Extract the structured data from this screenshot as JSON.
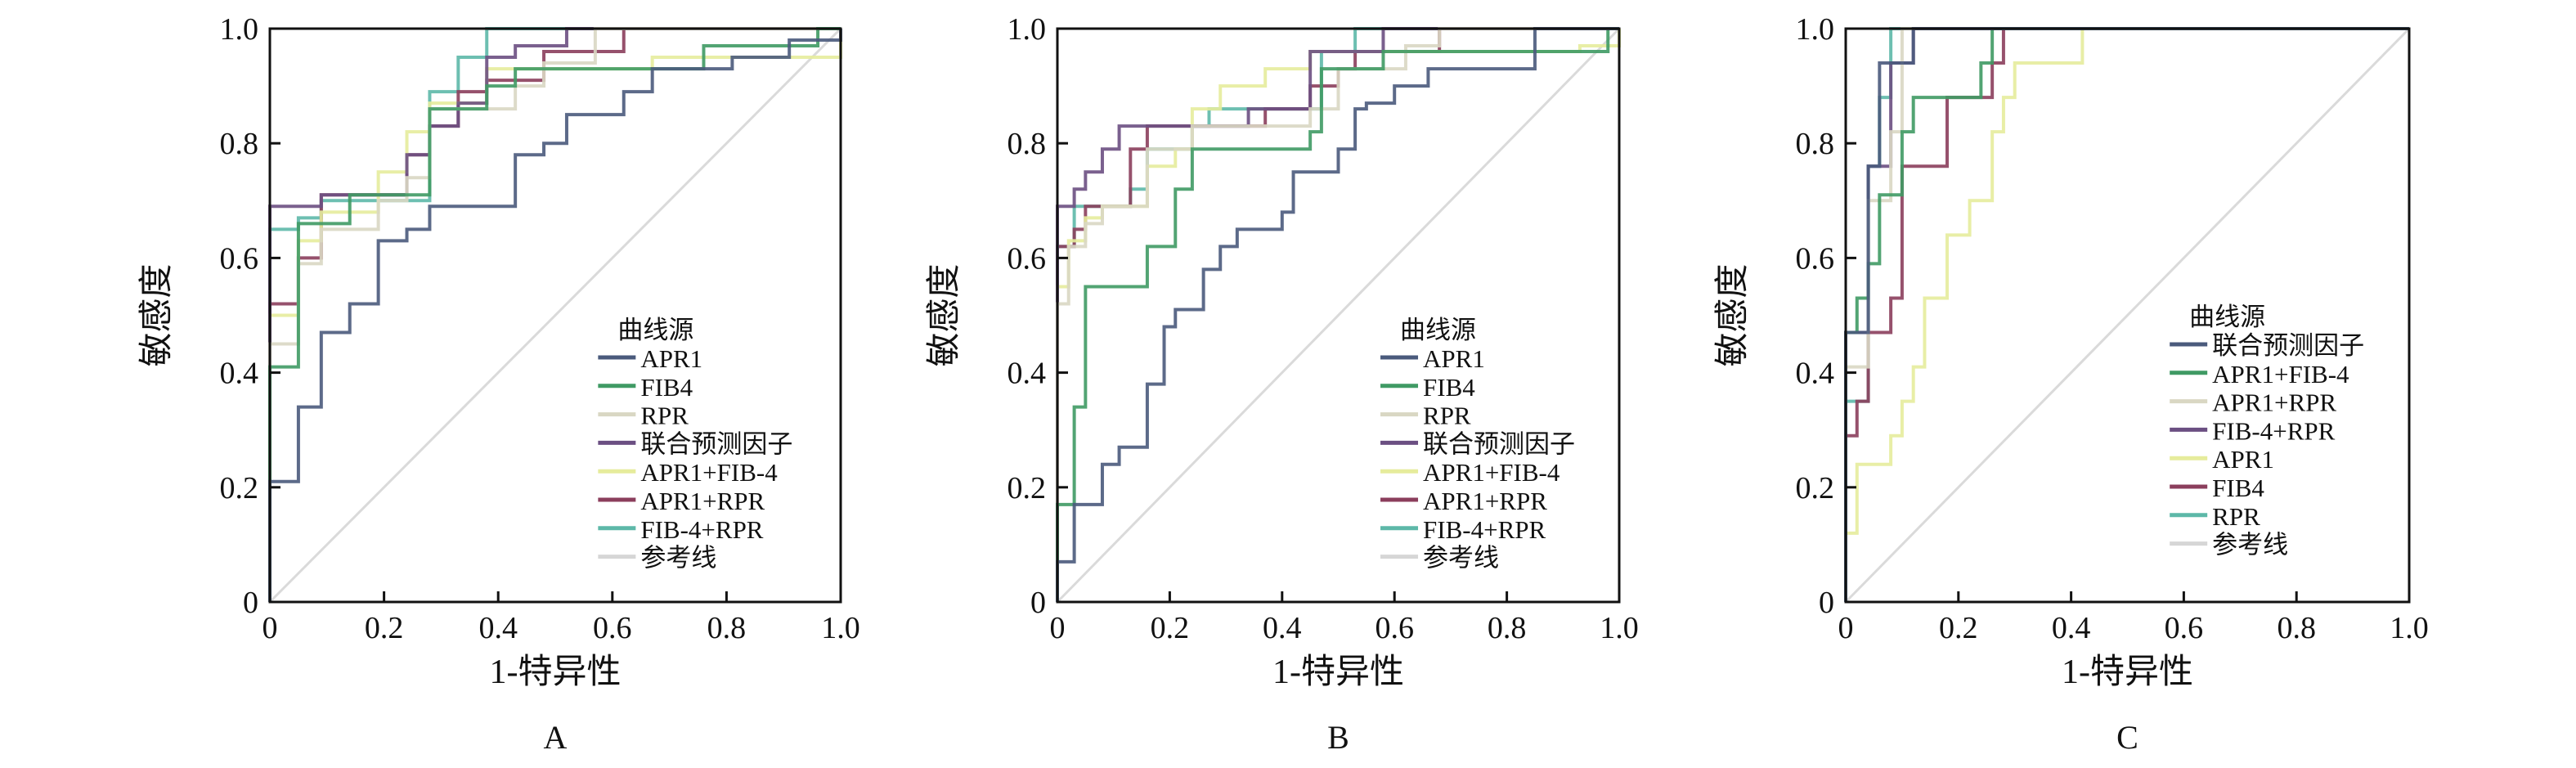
{
  "chart_data": [
    {
      "type": "line",
      "panel_label": "A",
      "xlabel": "1-特异性",
      "ylabel": "敏感度",
      "xlim": [
        0,
        1
      ],
      "ylim": [
        0,
        1
      ],
      "xticks": [
        "0",
        "0.2",
        "0.4",
        "0.6",
        "0.8",
        "1.0"
      ],
      "yticks": [
        "0",
        "0.2",
        "0.4",
        "0.6",
        "0.8",
        "1.0"
      ],
      "legend_title": "曲线源",
      "legend_position": "bottom-right",
      "series": [
        {
          "name": "APR1",
          "color": "#4a5a7c",
          "points": [
            [
              0,
              0.21
            ],
            [
              0.05,
              0.34
            ],
            [
              0.09,
              0.47
            ],
            [
              0.14,
              0.52
            ],
            [
              0.19,
              0.63
            ],
            [
              0.24,
              0.65
            ],
            [
              0.28,
              0.69
            ],
            [
              0.43,
              0.78
            ],
            [
              0.48,
              0.8
            ],
            [
              0.52,
              0.85
            ],
            [
              0.62,
              0.89
            ],
            [
              0.67,
              0.93
            ],
            [
              0.81,
              0.95
            ],
            [
              0.91,
              0.98
            ],
            [
              1,
              1
            ]
          ]
        },
        {
          "name": "FIB4",
          "color": "#3f9a64",
          "points": [
            [
              0,
              0.41
            ],
            [
              0.05,
              0.66
            ],
            [
              0.14,
              0.71
            ],
            [
              0.28,
              0.86
            ],
            [
              0.38,
              0.9
            ],
            [
              0.43,
              0.93
            ],
            [
              0.76,
              0.97
            ],
            [
              0.96,
              1
            ]
          ]
        },
        {
          "name": "RPR",
          "color": "#d9d7c3",
          "points": [
            [
              0,
              0.45
            ],
            [
              0.05,
              0.59
            ],
            [
              0.09,
              0.65
            ],
            [
              0.19,
              0.7
            ],
            [
              0.24,
              0.74
            ],
            [
              0.28,
              0.86
            ],
            [
              0.43,
              0.9
            ],
            [
              0.48,
              0.94
            ],
            [
              0.57,
              1
            ]
          ]
        },
        {
          "name": "联合预测因子",
          "color": "#6b4f82",
          "points": [
            [
              0,
              0.69
            ],
            [
              0.09,
              0.71
            ],
            [
              0.24,
              0.78
            ],
            [
              0.28,
              0.83
            ],
            [
              0.33,
              0.87
            ],
            [
              0.38,
              0.95
            ],
            [
              0.43,
              0.97
            ],
            [
              0.52,
              1
            ]
          ]
        },
        {
          "name": "APR1+FIB-4",
          "color": "#e6ec9c",
          "points": [
            [
              0,
              0.5
            ],
            [
              0.05,
              0.63
            ],
            [
              0.09,
              0.68
            ],
            [
              0.19,
              0.75
            ],
            [
              0.24,
              0.82
            ],
            [
              0.28,
              0.87
            ],
            [
              0.38,
              0.93
            ],
            [
              0.67,
              0.95
            ],
            [
              1,
              0.98
            ],
            [
              1,
              1
            ]
          ]
        },
        {
          "name": "APR1+RPR",
          "color": "#8b3e5c",
          "points": [
            [
              0,
              0.52
            ],
            [
              0.05,
              0.6
            ],
            [
              0.09,
              0.71
            ],
            [
              0.24,
              0.78
            ],
            [
              0.28,
              0.83
            ],
            [
              0.33,
              0.89
            ],
            [
              0.38,
              0.91
            ],
            [
              0.48,
              0.96
            ],
            [
              0.62,
              1
            ]
          ]
        },
        {
          "name": "FIB-4+RPR",
          "color": "#5db8a8",
          "points": [
            [
              0,
              0.65
            ],
            [
              0.05,
              0.67
            ],
            [
              0.09,
              0.7
            ],
            [
              0.28,
              0.89
            ],
            [
              0.33,
              0.95
            ],
            [
              0.38,
              1
            ]
          ]
        },
        {
          "name": "参考线",
          "color": "#d6d6d6",
          "reference": true,
          "points": [
            [
              0,
              0
            ],
            [
              1,
              1
            ]
          ]
        }
      ]
    },
    {
      "type": "line",
      "panel_label": "B",
      "xlabel": "1-特异性",
      "ylabel": "敏感度",
      "xlim": [
        0,
        1
      ],
      "ylim": [
        0,
        1
      ],
      "xticks": [
        "0",
        "0.2",
        "0.4",
        "0.6",
        "0.8",
        "1.0"
      ],
      "yticks": [
        "0",
        "0.2",
        "0.4",
        "0.6",
        "0.8",
        "1.0"
      ],
      "legend_title": "曲线源",
      "legend_position": "bottom-right",
      "series": [
        {
          "name": "APR1",
          "color": "#4a5a7c",
          "points": [
            [
              0,
              0.07
            ],
            [
              0.03,
              0.17
            ],
            [
              0.08,
              0.24
            ],
            [
              0.11,
              0.27
            ],
            [
              0.16,
              0.38
            ],
            [
              0.19,
              0.48
            ],
            [
              0.21,
              0.51
            ],
            [
              0.26,
              0.58
            ],
            [
              0.29,
              0.62
            ],
            [
              0.32,
              0.65
            ],
            [
              0.4,
              0.68
            ],
            [
              0.42,
              0.75
            ],
            [
              0.5,
              0.79
            ],
            [
              0.53,
              0.86
            ],
            [
              0.55,
              0.87
            ],
            [
              0.6,
              0.9
            ],
            [
              0.66,
              0.93
            ],
            [
              0.85,
              1
            ]
          ]
        },
        {
          "name": "FIB4",
          "color": "#3f9a64",
          "points": [
            [
              0,
              0.17
            ],
            [
              0.03,
              0.34
            ],
            [
              0.05,
              0.55
            ],
            [
              0.16,
              0.62
            ],
            [
              0.21,
              0.72
            ],
            [
              0.24,
              0.79
            ],
            [
              0.45,
              0.82
            ],
            [
              0.47,
              0.93
            ],
            [
              0.58,
              0.96
            ],
            [
              0.98,
              1
            ]
          ]
        },
        {
          "name": "RPR",
          "color": "#d9d7c3",
          "points": [
            [
              0,
              0.52
            ],
            [
              0.02,
              0.62
            ],
            [
              0.05,
              0.66
            ],
            [
              0.08,
              0.69
            ],
            [
              0.16,
              0.79
            ],
            [
              0.24,
              0.83
            ],
            [
              0.45,
              0.86
            ],
            [
              0.5,
              0.93
            ],
            [
              0.62,
              0.97
            ],
            [
              0.68,
              1
            ]
          ]
        },
        {
          "name": "联合预测因子",
          "color": "#6b4f82",
          "points": [
            [
              0,
              0.69
            ],
            [
              0.03,
              0.72
            ],
            [
              0.05,
              0.75
            ],
            [
              0.08,
              0.79
            ],
            [
              0.11,
              0.83
            ],
            [
              0.34,
              0.86
            ],
            [
              0.45,
              0.96
            ],
            [
              0.58,
              1
            ]
          ]
        },
        {
          "name": "APR1+FIB-4",
          "color": "#e6ec9c",
          "points": [
            [
              0,
              0.55
            ],
            [
              0.02,
              0.63
            ],
            [
              0.05,
              0.67
            ],
            [
              0.08,
              0.69
            ],
            [
              0.16,
              0.76
            ],
            [
              0.21,
              0.79
            ],
            [
              0.24,
              0.86
            ],
            [
              0.29,
              0.9
            ],
            [
              0.37,
              0.93
            ],
            [
              0.45,
              0.96
            ],
            [
              0.93,
              0.97
            ],
            [
              1,
              1
            ]
          ]
        },
        {
          "name": "APR1+RPR",
          "color": "#8b3e5c",
          "points": [
            [
              0,
              0.62
            ],
            [
              0.03,
              0.65
            ],
            [
              0.05,
              0.69
            ],
            [
              0.13,
              0.79
            ],
            [
              0.16,
              0.83
            ],
            [
              0.37,
              0.86
            ],
            [
              0.45,
              0.9
            ],
            [
              0.5,
              0.93
            ],
            [
              0.53,
              0.96
            ],
            [
              0.68,
              1
            ]
          ]
        },
        {
          "name": "FIB-4+RPR",
          "color": "#5db8a8",
          "points": [
            [
              0,
              0.62
            ],
            [
              0.03,
              0.69
            ],
            [
              0.13,
              0.72
            ],
            [
              0.16,
              0.79
            ],
            [
              0.24,
              0.83
            ],
            [
              0.27,
              0.86
            ],
            [
              0.47,
              0.96
            ],
            [
              0.53,
              1
            ]
          ]
        },
        {
          "name": "参考线",
          "color": "#d6d6d6",
          "reference": true,
          "points": [
            [
              0,
              0
            ],
            [
              1,
              1
            ]
          ]
        }
      ]
    },
    {
      "type": "line",
      "panel_label": "C",
      "xlabel": "1-特异性",
      "ylabel": "敏感度",
      "xlim": [
        0,
        1
      ],
      "ylim": [
        0,
        1
      ],
      "xticks": [
        "0",
        "0.2",
        "0.4",
        "0.6",
        "0.8",
        "1.0"
      ],
      "yticks": [
        "0",
        "0.2",
        "0.4",
        "0.6",
        "0.8",
        "1.0"
      ],
      "legend_title": "曲线源",
      "legend_position": "bottom-right",
      "series": [
        {
          "name": "联合预测因子",
          "color": "#4a5a7c",
          "points": [
            [
              0,
              0.47
            ],
            [
              0.04,
              0.76
            ],
            [
              0.06,
              0.94
            ],
            [
              0.12,
              1
            ]
          ]
        },
        {
          "name": "APR1+FIB-4",
          "color": "#3f9a64",
          "points": [
            [
              0,
              0.47
            ],
            [
              0.02,
              0.53
            ],
            [
              0.04,
              0.59
            ],
            [
              0.06,
              0.71
            ],
            [
              0.1,
              0.82
            ],
            [
              0.12,
              0.88
            ],
            [
              0.24,
              0.94
            ],
            [
              0.26,
              1
            ]
          ]
        },
        {
          "name": "APR1+RPR",
          "color": "#d9d7c3",
          "points": [
            [
              0,
              0.41
            ],
            [
              0.04,
              0.7
            ],
            [
              0.08,
              0.82
            ],
            [
              0.1,
              1
            ]
          ]
        },
        {
          "name": "FIB-4+RPR",
          "color": "#6b4f82",
          "points": [
            [
              0,
              0.47
            ],
            [
              0.04,
              0.76
            ],
            [
              0.08,
              0.82
            ],
            [
              0.08,
              0.94
            ],
            [
              0.12,
              1
            ]
          ]
        },
        {
          "name": "APR1",
          "color": "#e6ec9c",
          "points": [
            [
              0,
              0.12
            ],
            [
              0.02,
              0.24
            ],
            [
              0.08,
              0.29
            ],
            [
              0.1,
              0.35
            ],
            [
              0.12,
              0.41
            ],
            [
              0.14,
              0.53
            ],
            [
              0.18,
              0.64
            ],
            [
              0.22,
              0.7
            ],
            [
              0.26,
              0.82
            ],
            [
              0.28,
              0.88
            ],
            [
              0.3,
              0.94
            ],
            [
              0.42,
              1
            ]
          ]
        },
        {
          "name": "FIB4",
          "color": "#8b3e5c",
          "points": [
            [
              0,
              0.29
            ],
            [
              0.02,
              0.35
            ],
            [
              0.04,
              0.47
            ],
            [
              0.08,
              0.53
            ],
            [
              0.1,
              0.76
            ],
            [
              0.18,
              0.88
            ],
            [
              0.26,
              0.94
            ],
            [
              0.28,
              1
            ]
          ]
        },
        {
          "name": "RPR",
          "color": "#5db8a8",
          "points": [
            [
              0,
              0.35
            ],
            [
              0.04,
              0.76
            ],
            [
              0.06,
              0.88
            ],
            [
              0.08,
              1
            ]
          ]
        },
        {
          "name": "参考线",
          "color": "#d6d6d6",
          "reference": true,
          "points": [
            [
              0,
              0
            ],
            [
              1,
              1
            ]
          ]
        }
      ]
    }
  ]
}
